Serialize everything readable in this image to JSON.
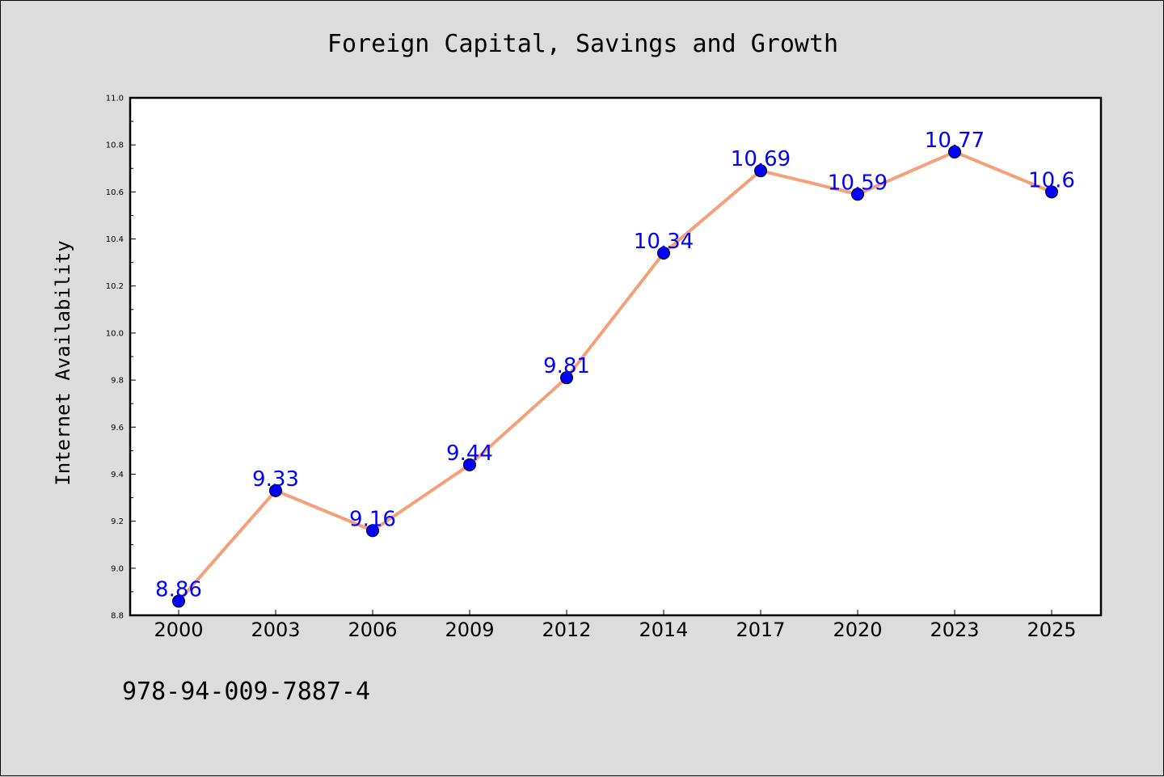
{
  "chart_data": {
    "type": "line",
    "title": "Foreign Capital, Savings and Growth",
    "xlabel": "",
    "ylabel": "Internet Availability",
    "categories": [
      "2000",
      "2003",
      "2006",
      "2009",
      "2012",
      "2014",
      "2017",
      "2020",
      "2023",
      "2025"
    ],
    "series": [
      {
        "values": [
          8.86,
          9.33,
          9.16,
          9.44,
          9.81,
          10.34,
          10.69,
          10.59,
          10.77,
          10.6
        ]
      }
    ],
    "data_labels": [
      "8.86",
      "9.33",
      "9.16",
      "9.44",
      "9.81",
      "10.34",
      "10.69",
      "10.59",
      "10.77",
      "10.6"
    ],
    "ylim": [
      8.8,
      11.0
    ],
    "yticks": [
      "8.8",
      "9.0",
      "9.2",
      "9.4",
      "9.6",
      "9.8",
      "10.0",
      "10.2",
      "10.4",
      "10.6",
      "10.8",
      "11.0"
    ],
    "grid": false,
    "colors": {
      "line": "#f4a07a",
      "marker": "#0000ff",
      "data_label": "#0000ff",
      "plot_bg": "#ffffff",
      "page_bg": "#dcdcdc"
    }
  },
  "footnote": "978-94-009-7887-4"
}
